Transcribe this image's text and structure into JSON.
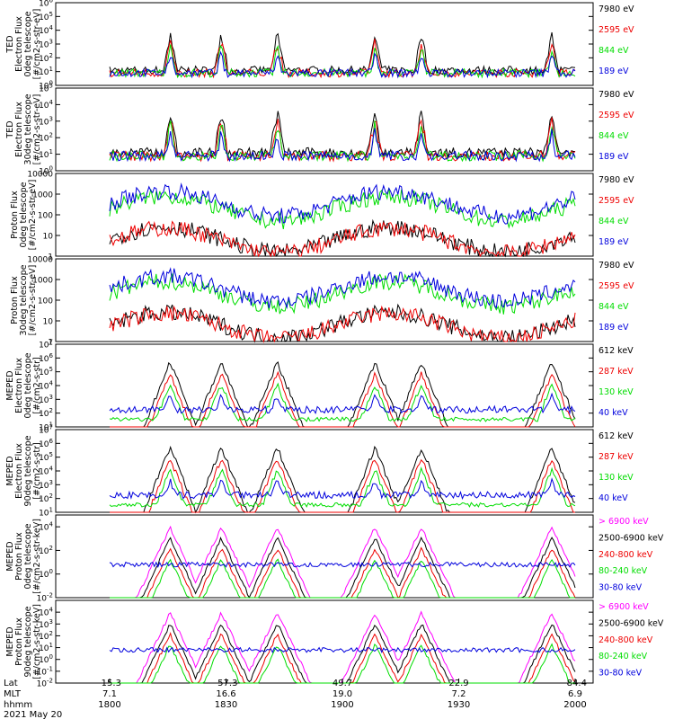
{
  "colors": {
    "black": "#000000",
    "red": "#ee0000",
    "green": "#00dd00",
    "blue": "#0000dd",
    "magenta": "#ff00ff"
  },
  "chart_data": {
    "type": "line",
    "date_label": "2021 May 20",
    "x_rows": [
      {
        "label": "Lat",
        "values": [
          "-15.3",
          "-57.3",
          "49.7",
          "22.9",
          "-84.4"
        ]
      },
      {
        "label": "MLT",
        "values": [
          "7.1",
          "16.6",
          "19.0",
          "7.2",
          "6.9"
        ]
      },
      {
        "label": "hhmm",
        "values": [
          "1800",
          "1830",
          "1900",
          "1930",
          "2000"
        ]
      }
    ],
    "x_range_hhmm": [
      "1800",
      "2000"
    ],
    "panels": [
      {
        "ylabel": [
          "TED",
          "Electron Flux",
          "0deg telescope",
          "[#/cm2-s-str-eV]"
        ],
        "scale": "log",
        "ylim": [
          1,
          1000000
        ],
        "yticks": [
          {
            "v": 1,
            "t": "10",
            "s": "0"
          },
          {
            "v": 10,
            "t": "10",
            "s": "1"
          },
          {
            "v": 100,
            "t": "10",
            "s": "2"
          },
          {
            "v": 1000,
            "t": "10",
            "s": "3"
          },
          {
            "v": 10000,
            "t": "10",
            "s": "4"
          },
          {
            "v": 100000,
            "t": "10",
            "s": "5"
          },
          {
            "v": 1000000,
            "t": "10",
            "s": "6"
          }
        ],
        "series": [
          {
            "name": "7980 eV",
            "color": "#000000"
          },
          {
            "name": "2595 eV",
            "color": "#ee0000"
          },
          {
            "name": "844 eV",
            "color": "#00dd00"
          },
          {
            "name": "189 eV",
            "color": "#0000dd"
          }
        ]
      },
      {
        "ylabel": [
          "TED",
          "Electron Flux",
          "30deg telescope",
          "[#/cm2-s-str-eV]"
        ],
        "scale": "log",
        "ylim": [
          1,
          100000
        ],
        "yticks": [
          {
            "v": 1,
            "t": "10",
            "s": "0"
          },
          {
            "v": 10,
            "t": "10",
            "s": "1"
          },
          {
            "v": 100,
            "t": "10",
            "s": "2"
          },
          {
            "v": 1000,
            "t": "10",
            "s": "3"
          },
          {
            "v": 10000,
            "t": "10",
            "s": "4"
          },
          {
            "v": 100000,
            "t": "10",
            "s": "5"
          }
        ],
        "series": [
          {
            "name": "7980 eV",
            "color": "#000000"
          },
          {
            "name": "2595 eV",
            "color": "#ee0000"
          },
          {
            "name": "844 eV",
            "color": "#00dd00"
          },
          {
            "name": "189 eV",
            "color": "#0000dd"
          }
        ]
      },
      {
        "ylabel": [
          "Proton Flux",
          "0deg telescope",
          "[#/cm2-s-str-eV]"
        ],
        "scale": "log",
        "ylim": [
          1,
          10000
        ],
        "yticks": [
          {
            "v": 1,
            "t": "1"
          },
          {
            "v": 10,
            "t": "10"
          },
          {
            "v": 100,
            "t": "100"
          },
          {
            "v": 1000,
            "t": "1000"
          },
          {
            "v": 10000,
            "t": "10000"
          }
        ],
        "series": [
          {
            "name": "7980 eV",
            "color": "#000000"
          },
          {
            "name": "2595 eV",
            "color": "#ee0000"
          },
          {
            "name": "844 eV",
            "color": "#00dd00"
          },
          {
            "name": "189 eV",
            "color": "#0000dd"
          }
        ]
      },
      {
        "ylabel": [
          "Proton Flux",
          "30deg telescope",
          "[#/cm2-s-str-eV]"
        ],
        "scale": "log",
        "ylim": [
          1,
          10000
        ],
        "yticks": [
          {
            "v": 1,
            "t": "1"
          },
          {
            "v": 10,
            "t": "10"
          },
          {
            "v": 100,
            "t": "100"
          },
          {
            "v": 1000,
            "t": "1000"
          },
          {
            "v": 10000,
            "t": "10000"
          }
        ],
        "series": [
          {
            "name": "7980 eV",
            "color": "#000000"
          },
          {
            "name": "2595 eV",
            "color": "#ee0000"
          },
          {
            "name": "844 eV",
            "color": "#00dd00"
          },
          {
            "name": "189 eV",
            "color": "#0000dd"
          }
        ]
      },
      {
        "ylabel": [
          "MEPED",
          "Electron Flux",
          "0deg telescope",
          "[#/cm2-s-str]"
        ],
        "scale": "log",
        "ylim": [
          10,
          10000000
        ],
        "yticks": [
          {
            "v": 10,
            "t": "10",
            "s": "1"
          },
          {
            "v": 100,
            "t": "10",
            "s": "2"
          },
          {
            "v": 1000,
            "t": "10",
            "s": "3"
          },
          {
            "v": 10000,
            "t": "10",
            "s": "4"
          },
          {
            "v": 100000,
            "t": "10",
            "s": "5"
          },
          {
            "v": 1000000,
            "t": "10",
            "s": "6"
          },
          {
            "v": 10000000,
            "t": "10",
            "s": "7"
          }
        ],
        "series": [
          {
            "name": "612 keV",
            "color": "#000000"
          },
          {
            "name": "287 keV",
            "color": "#ee0000"
          },
          {
            "name": "130 keV",
            "color": "#00dd00"
          },
          {
            "name": "40 keV",
            "color": "#0000dd"
          }
        ]
      },
      {
        "ylabel": [
          "MEPED",
          "Electron Flux",
          "90deg telescope",
          "[#/cm2-s-str]"
        ],
        "scale": "log",
        "ylim": [
          10,
          10000000
        ],
        "yticks": [
          {
            "v": 10,
            "t": "10",
            "s": "1"
          },
          {
            "v": 100,
            "t": "10",
            "s": "2"
          },
          {
            "v": 1000,
            "t": "10",
            "s": "3"
          },
          {
            "v": 10000,
            "t": "10",
            "s": "4"
          },
          {
            "v": 100000,
            "t": "10",
            "s": "5"
          },
          {
            "v": 1000000,
            "t": "10",
            "s": "6"
          },
          {
            "v": 10000000,
            "t": "10",
            "s": "7"
          }
        ],
        "series": [
          {
            "name": "612 keV",
            "color": "#000000"
          },
          {
            "name": "287 keV",
            "color": "#ee0000"
          },
          {
            "name": "130 keV",
            "color": "#00dd00"
          },
          {
            "name": "40 keV",
            "color": "#0000dd"
          }
        ]
      },
      {
        "ylabel": [
          "MEPED",
          "Proton Flux",
          "0deg telescope",
          "[#/cm2-s-str-keV]"
        ],
        "scale": "log",
        "ylim": [
          0.01,
          100000
        ],
        "yticks": [
          {
            "v": 0.01,
            "t": "10",
            "s": "-2"
          },
          {
            "v": 1,
            "t": "10",
            "s": "0"
          },
          {
            "v": 100,
            "t": "10",
            "s": "2"
          },
          {
            "v": 10000,
            "t": "10",
            "s": "4"
          }
        ],
        "series": [
          {
            "name": "> 6900 keV",
            "color": "#ff00ff"
          },
          {
            "name": "2500-6900 keV",
            "color": "#000000"
          },
          {
            "name": "240-800 keV",
            "color": "#ee0000"
          },
          {
            "name": "80-240 keV",
            "color": "#00dd00"
          },
          {
            "name": "30-80 keV",
            "color": "#0000dd"
          }
        ]
      },
      {
        "ylabel": [
          "MEPED",
          "Proton Flux",
          "90deg telescope",
          "[#/cm2-s-str-keV]"
        ],
        "scale": "log",
        "ylim": [
          0.01,
          100000
        ],
        "yticks": [
          {
            "v": 0.01,
            "t": "10",
            "s": "-2"
          },
          {
            "v": 0.1,
            "t": "10",
            "s": "-1"
          },
          {
            "v": 1,
            "t": "10",
            "s": "0"
          },
          {
            "v": 10,
            "t": "10",
            "s": "1"
          },
          {
            "v": 100,
            "t": "10",
            "s": "2"
          },
          {
            "v": 1000,
            "t": "10",
            "s": "3"
          },
          {
            "v": 10000,
            "t": "10",
            "s": "4"
          }
        ],
        "series": [
          {
            "name": "> 6900 keV",
            "color": "#ff00ff"
          },
          {
            "name": "2500-6900 keV",
            "color": "#000000"
          },
          {
            "name": "240-800 keV",
            "color": "#ee0000"
          },
          {
            "name": "80-240 keV",
            "color": "#00dd00"
          },
          {
            "name": "30-80 keV",
            "color": "#0000dd"
          }
        ]
      }
    ]
  }
}
